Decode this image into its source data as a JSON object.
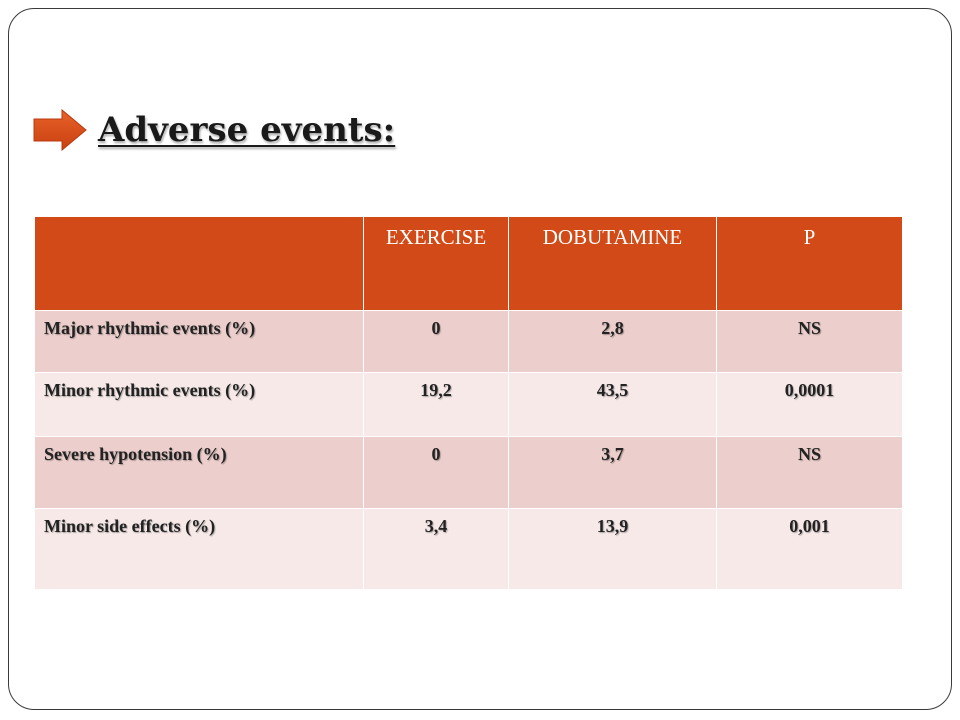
{
  "slide": {
    "title": "Adverse events:",
    "bullet_icon": "arrow-right-icon",
    "colors": {
      "accent": "#d24a17",
      "row_dark": "#eccfcd",
      "row_light": "#f6e9e8"
    }
  },
  "table": {
    "headers": [
      "",
      "EXERCISE",
      "DOBUTAMINE",
      "P"
    ],
    "rows": [
      {
        "label": "Major rhythmic events (%)",
        "exercise": "0",
        "dobutamine": "2,8",
        "p": "NS"
      },
      {
        "label": "Minor rhythmic events (%)",
        "exercise": "19,2",
        "dobutamine": "43,5",
        "p": "0,0001"
      },
      {
        "label": "Severe hypotension (%)",
        "exercise": "0",
        "dobutamine": "3,7",
        "p": "NS"
      },
      {
        "label": "Minor side effects (%)",
        "exercise": "3,4",
        "dobutamine": "13,9",
        "p": "0,001"
      }
    ]
  }
}
